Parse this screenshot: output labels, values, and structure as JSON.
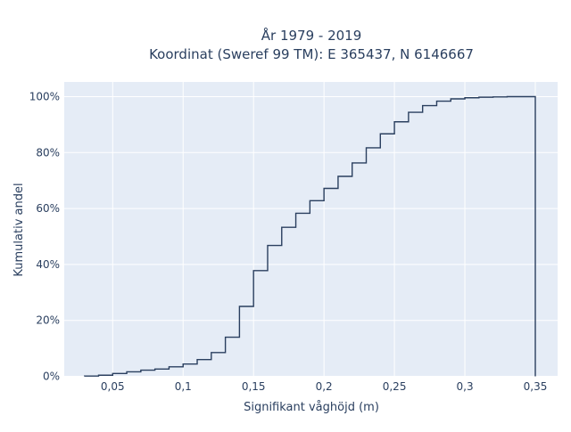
{
  "chart_data": {
    "type": "line",
    "step": "histogram-cumulative",
    "title_lines": [
      "År 1979 - 2019",
      "Koordinat (Sweref 99 TM): E 365437, N 6146667"
    ],
    "xlabel": "Signifikant våghöjd (m)",
    "ylabel": "Kumulativ andel",
    "xlim": [
      0.015,
      0.365
    ],
    "ylim": [
      0,
      100
    ],
    "x_ticks": [
      0.05,
      0.1,
      0.15,
      0.2,
      0.25,
      0.3,
      0.35
    ],
    "x_tick_labels": [
      "0,05",
      "0,1",
      "0,15",
      "0,2",
      "0,25",
      "0,3",
      "0,35"
    ],
    "y_ticks": [
      0,
      20,
      40,
      60,
      80,
      100
    ],
    "y_tick_labels": [
      "0%",
      "20%",
      "40%",
      "60%",
      "80%",
      "100%"
    ],
    "bin_edges": [
      0.03,
      0.04,
      0.05,
      0.06,
      0.07,
      0.08,
      0.09,
      0.1,
      0.11,
      0.12,
      0.13,
      0.14,
      0.15,
      0.16,
      0.17,
      0.18,
      0.19,
      0.2,
      0.21,
      0.22,
      0.23,
      0.24,
      0.25,
      0.26,
      0.27,
      0.28,
      0.29,
      0.3,
      0.31,
      0.32,
      0.33,
      0.34,
      0.35
    ],
    "cumulative_percent": [
      0.1,
      0.4,
      1.0,
      1.6,
      2.2,
      2.6,
      3.4,
      4.4,
      6.0,
      8.5,
      14.0,
      25.0,
      37.8,
      46.8,
      53.3,
      58.3,
      62.8,
      67.2,
      71.5,
      76.3,
      81.7,
      86.7,
      91.0,
      94.4,
      96.8,
      98.4,
      99.2,
      99.6,
      99.8,
      99.9,
      100.0,
      100.0
    ],
    "grid": true,
    "colors": {
      "plot_background": "#e5ecf6",
      "grid": "#ffffff",
      "line": "#2a3f5f",
      "text": "#2a3f5f"
    }
  }
}
